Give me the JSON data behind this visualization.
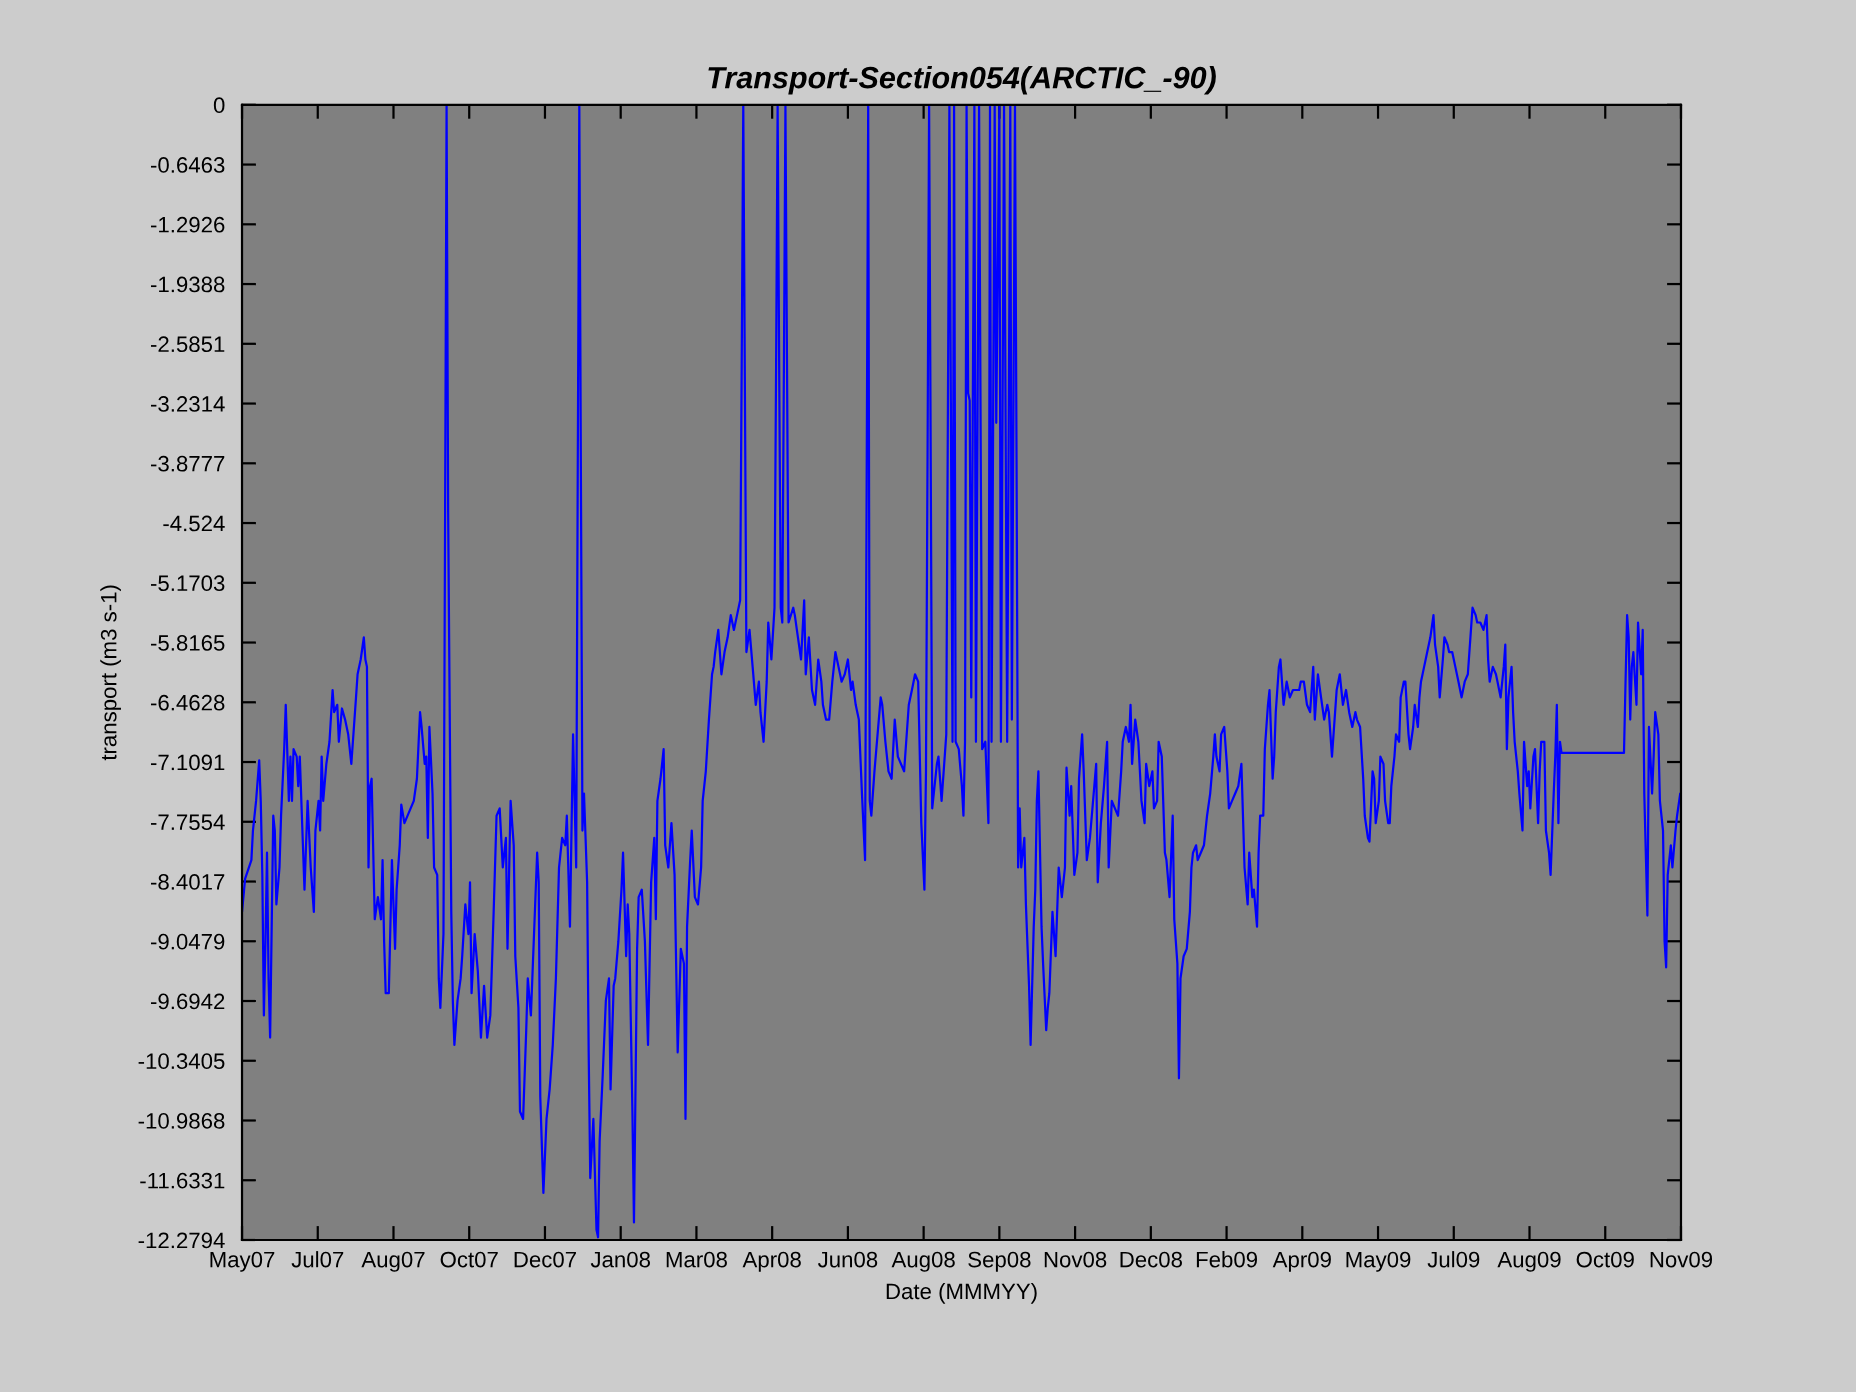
{
  "chart_data": {
    "type": "line",
    "title": "Transport-Section054(ARCTIC_-90)",
    "xlabel": "Date (MMMYY)",
    "ylabel": "transport (m3 s-1)",
    "color": "#0000ff",
    "line_style": "solid",
    "xlim": [
      "2007-05-23",
      "2009-11-29T12:00"
    ],
    "xticks": [
      {
        "value": "2007-05-23",
        "label": "May07"
      },
      {
        "value": "2007-07-10T12:00",
        "label": "Jul07"
      },
      {
        "value": "2007-08-28",
        "label": "Aug07"
      },
      {
        "value": "2007-10-15T12:00",
        "label": "Oct07"
      },
      {
        "value": "2007-12-03",
        "label": "Dec07"
      },
      {
        "value": "2008-01-20T12:00",
        "label": "Jan08"
      },
      {
        "value": "2008-03-09",
        "label": "Mar08"
      },
      {
        "value": "2008-04-26T12:00",
        "label": "Apr08"
      },
      {
        "value": "2008-06-14",
        "label": "Jun08"
      },
      {
        "value": "2008-08-01T12:00",
        "label": "Aug08"
      },
      {
        "value": "2008-09-19",
        "label": "Sep08"
      },
      {
        "value": "2008-11-06T12:00",
        "label": "Nov08"
      },
      {
        "value": "2008-12-25",
        "label": "Dec08"
      },
      {
        "value": "2009-02-11T12:00",
        "label": "Feb09"
      },
      {
        "value": "2009-04-01",
        "label": "Apr09"
      },
      {
        "value": "2009-05-19T12:00",
        "label": "May09"
      },
      {
        "value": "2009-07-07",
        "label": "Jul09"
      },
      {
        "value": "2009-08-24T12:00",
        "label": "Aug09"
      },
      {
        "value": "2009-10-12",
        "label": "Oct09"
      },
      {
        "value": "2009-11-29T12:00",
        "label": "Nov09"
      }
    ],
    "ylim": [
      -12.2794,
      0
    ],
    "yticks": [
      0,
      -0.6463,
      -1.2926,
      -1.9388,
      -2.5851,
      -3.2314,
      -3.8777,
      -4.524,
      -5.1703,
      -5.8165,
      -6.4628,
      -7.1091,
      -7.7554,
      -8.4017,
      -9.0479,
      -9.6942,
      -10.3405,
      -10.9868,
      -11.6331,
      -12.2794
    ],
    "x": [
      "2007-05-23",
      "2007-05-25",
      "2007-05-29",
      "2007-05-30",
      "2007-06-01",
      "2007-06-03",
      "2007-06-04",
      "2007-06-05",
      "2007-06-06",
      "2007-06-07",
      "2007-06-08",
      "2007-06-09",
      "2007-06-10",
      "2007-06-12",
      "2007-06-13",
      "2007-06-14",
      "2007-06-16",
      "2007-06-17",
      "2007-06-19",
      "2007-06-20",
      "2007-06-22",
      "2007-06-23",
      "2007-06-24",
      "2007-06-25",
      "2007-06-27",
      "2007-06-28",
      "2007-06-29",
      "2007-07-01",
      "2007-07-02",
      "2007-07-04",
      "2007-07-06",
      "2007-07-08",
      "2007-07-09",
      "2007-07-11",
      "2007-07-12",
      "2007-07-13",
      "2007-07-14",
      "2007-07-16",
      "2007-07-18",
      "2007-07-20",
      "2007-07-21",
      "2007-07-23",
      "2007-07-24",
      "2007-07-26",
      "2007-07-28",
      "2007-07-30",
      "2007-08-01",
      "2007-08-02",
      "2007-08-04",
      "2007-08-05",
      "2007-08-07",
      "2007-08-09",
      "2007-08-10",
      "2007-08-11",
      "2007-08-12",
      "2007-08-13",
      "2007-08-14",
      "2007-08-16",
      "2007-08-18",
      "2007-08-20",
      "2007-08-21",
      "2007-08-22",
      "2007-08-23",
      "2007-08-25",
      "2007-08-27",
      "2007-08-29",
      "2007-08-30",
      "2007-09-01",
      "2007-09-02",
      "2007-09-04",
      "2007-09-10",
      "2007-09-12",
      "2007-09-14",
      "2007-09-15",
      "2007-09-17",
      "2007-09-18",
      "2007-09-19",
      "2007-09-20",
      "2007-09-22",
      "2007-09-23",
      "2007-09-25",
      "2007-09-26",
      "2007-09-27",
      "2007-09-29",
      "2007-09-30",
      "2007-10-01",
      "2007-10-02",
      "2007-10-04",
      "2007-10-05",
      "2007-10-06",
      "2007-10-08",
      "2007-10-10",
      "2007-10-11",
      "2007-10-13",
      "2007-10-15",
      "2007-10-16",
      "2007-10-17",
      "2007-10-19",
      "2007-10-21",
      "2007-10-23",
      "2007-10-25",
      "2007-10-27",
      "2007-10-29",
      "2007-10-31",
      "2007-11-02",
      "2007-11-04",
      "2007-11-06",
      "2007-11-08",
      "2007-11-09",
      "2007-11-11",
      "2007-11-13",
      "2007-11-14",
      "2007-11-16",
      "2007-11-17",
      "2007-11-19",
      "2007-11-21",
      "2007-11-22",
      "2007-11-24",
      "2007-11-26",
      "2007-11-28",
      "2007-11-29",
      "2007-11-30",
      "2007-12-02",
      "2007-12-04",
      "2007-12-06",
      "2007-12-08",
      "2007-12-10",
      "2007-12-12",
      "2007-12-14",
      "2007-12-16",
      "2007-12-17",
      "2007-12-19",
      "2007-12-20",
      "2007-12-21",
      "2007-12-23",
      "2007-12-24",
      "2007-12-25",
      "2007-12-27",
      "2007-12-28",
      "2007-12-30",
      "2007-12-31",
      "2008-01-01",
      "2008-01-03",
      "2008-01-05",
      "2008-01-06",
      "2008-01-07",
      "2008-01-09",
      "2008-01-11",
      "2008-01-13",
      "2008-01-14",
      "2008-01-16",
      "2008-01-17",
      "2008-01-19",
      "2008-01-21",
      "2008-01-22",
      "2008-01-24",
      "2008-01-25",
      "2008-01-26",
      "2008-01-28",
      "2008-01-29",
      "2008-01-31",
      "2008-02-01",
      "2008-02-03",
      "2008-02-05",
      "2008-02-07",
      "2008-02-09",
      "2008-02-11",
      "2008-02-12",
      "2008-02-13",
      "2008-02-15",
      "2008-02-17",
      "2008-02-18",
      "2008-02-20",
      "2008-02-22",
      "2008-02-24",
      "2008-02-26",
      "2008-02-28",
      "2008-03-01",
      "2008-03-02",
      "2008-03-03",
      "2008-03-05",
      "2008-03-06",
      "2008-03-08",
      "2008-03-10",
      "2008-03-12",
      "2008-03-13",
      "2008-03-15",
      "2008-03-17",
      "2008-03-19",
      "2008-03-20",
      "2008-03-21",
      "2008-03-23",
      "2008-03-25",
      "2008-03-27",
      "2008-03-29",
      "2008-03-31",
      "2008-04-02",
      "2008-04-04",
      "2008-04-06",
      "2008-04-07",
      "2008-04-08",
      "2008-04-09",
      "2008-04-10",
      "2008-04-12",
      "2008-04-14",
      "2008-04-16",
      "2008-04-18",
      "2008-04-19",
      "2008-04-21",
      "2008-04-23",
      "2008-04-24",
      "2008-04-26",
      "2008-04-28",
      "2008-04-29",
      "2008-04-30",
      "2008-05-01",
      "2008-05-02",
      "2008-05-03",
      "2008-05-04",
      "2008-05-05",
      "2008-05-06",
      "2008-05-07",
      "2008-05-10",
      "2008-05-11",
      "2008-05-13",
      "2008-05-15",
      "2008-05-17",
      "2008-05-18",
      "2008-05-20",
      "2008-05-22",
      "2008-05-24",
      "2008-05-26",
      "2008-05-28",
      "2008-05-29",
      "2008-05-31",
      "2008-06-02",
      "2008-06-04",
      "2008-06-06",
      "2008-06-08",
      "2008-06-10",
      "2008-06-12",
      "2008-06-14",
      "2008-06-16",
      "2008-06-17",
      "2008-06-19",
      "2008-06-21",
      "2008-06-23",
      "2008-06-25",
      "2008-06-26",
      "2008-06-27",
      "2008-06-28",
      "2008-06-29",
      "2008-07-01",
      "2008-07-03",
      "2008-07-05",
      "2008-07-06",
      "2008-07-08",
      "2008-07-10",
      "2008-07-12",
      "2008-07-14",
      "2008-07-16",
      "2008-07-18",
      "2008-07-20",
      "2008-07-22",
      "2008-07-23",
      "2008-07-25",
      "2008-07-27",
      "2008-07-29",
      "2008-07-31",
      "2008-08-02",
      "2008-08-03",
      "2008-08-04",
      "2008-08-05",
      "2008-08-06",
      "2008-08-07",
      "2008-08-09",
      "2008-08-10",
      "2008-08-11",
      "2008-08-13",
      "2008-08-15",
      "2008-08-16",
      "2008-08-17",
      "2008-08-18",
      "2008-08-19",
      "2008-08-20",
      "2008-08-21",
      "2008-08-22",
      "2008-08-24",
      "2008-08-26",
      "2008-08-27",
      "2008-08-28",
      "2008-08-29",
      "2008-08-30",
      "2008-08-31",
      "2008-09-01",
      "2008-09-03",
      "2008-09-04",
      "2008-09-06",
      "2008-09-08",
      "2008-09-10",
      "2008-09-12",
      "2008-09-13",
      "2008-09-14",
      "2008-09-16",
      "2008-09-17",
      "2008-09-19",
      "2008-09-20",
      "2008-09-22",
      "2008-09-24",
      "2008-09-26",
      "2008-09-27",
      "2008-09-29",
      "2008-09-30",
      "2008-10-01",
      "2008-10-02",
      "2008-10-03",
      "2008-10-05",
      "2008-10-06",
      "2008-10-08",
      "2008-10-09",
      "2008-10-11",
      "2008-10-12",
      "2008-10-13",
      "2008-10-14",
      "2008-10-16",
      "2008-10-17",
      "2008-10-19",
      "2008-10-20",
      "2008-10-21",
      "2008-10-23",
      "2008-10-25",
      "2008-10-27",
      "2008-10-29",
      "2008-10-31",
      "2008-11-01",
      "2008-11-03",
      "2008-11-04",
      "2008-11-06",
      "2008-11-08",
      "2008-11-09",
      "2008-11-11",
      "2008-11-12",
      "2008-11-14",
      "2008-11-16",
      "2008-11-18",
      "2008-11-20",
      "2008-11-21",
      "2008-11-23",
      "2008-11-25",
      "2008-11-27",
      "2008-11-28",
      "2008-11-30",
      "2008-12-02",
      "2008-12-04",
      "2008-12-06",
      "2008-12-07",
      "2008-12-09",
      "2008-12-11",
      "2008-12-12",
      "2008-12-13",
      "2008-12-15",
      "2008-12-17",
      "2008-12-19",
      "2008-12-21",
      "2008-12-22",
      "2008-12-24",
      "2008-12-26",
      "2008-12-27",
      "2008-12-29",
      "2008-12-30",
      "2009-01-01",
      "2009-01-03",
      "2009-01-04",
      "2009-01-06",
      "2009-01-08",
      "2009-01-09",
      "2009-01-11",
      "2009-01-12",
      "2009-01-13",
      "2009-01-15",
      "2009-01-17",
      "2009-01-19",
      "2009-01-20",
      "2009-01-21",
      "2009-01-23",
      "2009-01-24",
      "2009-01-26",
      "2009-01-28",
      "2009-01-30",
      "2009-02-01",
      "2009-02-03",
      "2009-02-04",
      "2009-02-05",
      "2009-02-07",
      "2009-02-08",
      "2009-02-10",
      "2009-02-12",
      "2009-02-13",
      "2009-02-15",
      "2009-02-17",
      "2009-02-19",
      "2009-02-21",
      "2009-02-22",
      "2009-02-23",
      "2009-02-25",
      "2009-02-26",
      "2009-02-28",
      "2009-03-01",
      "2009-03-03",
      "2009-03-04",
      "2009-03-05",
      "2009-03-07",
      "2009-03-08",
      "2009-03-10",
      "2009-03-11",
      "2009-03-13",
      "2009-03-14",
      "2009-03-15",
      "2009-03-17",
      "2009-03-18",
      "2009-03-20",
      "2009-03-22",
      "2009-03-24",
      "2009-03-26",
      "2009-03-28",
      "2009-03-30",
      "2009-03-31",
      "2009-04-02",
      "2009-04-04",
      "2009-04-06",
      "2009-04-08",
      "2009-04-09",
      "2009-04-11",
      "2009-04-13",
      "2009-04-15",
      "2009-04-17",
      "2009-04-18",
      "2009-04-20",
      "2009-04-22",
      "2009-04-23",
      "2009-04-25",
      "2009-04-27",
      "2009-04-29",
      "2009-05-01",
      "2009-05-03",
      "2009-05-05",
      "2009-05-06",
      "2009-05-08",
      "2009-05-10",
      "2009-05-11",
      "2009-05-13",
      "2009-05-14",
      "2009-05-16",
      "2009-05-17",
      "2009-05-18",
      "2009-05-20",
      "2009-05-21",
      "2009-05-23",
      "2009-05-24",
      "2009-05-26",
      "2009-05-27",
      "2009-05-28",
      "2009-05-30",
      "2009-05-31",
      "2009-06-02",
      "2009-06-03",
      "2009-06-05",
      "2009-06-06",
      "2009-06-08",
      "2009-06-09",
      "2009-06-11",
      "2009-06-12",
      "2009-06-14",
      "2009-06-15",
      "2009-06-16",
      "2009-06-18",
      "2009-06-20",
      "2009-06-22",
      "2009-06-24",
      "2009-06-25",
      "2009-06-27",
      "2009-06-28",
      "2009-06-30",
      "2009-07-01",
      "2009-07-03",
      "2009-07-04",
      "2009-07-06",
      "2009-07-08",
      "2009-07-10",
      "2009-07-12",
      "2009-07-14",
      "2009-07-16",
      "2009-07-18",
      "2009-07-19",
      "2009-07-21",
      "2009-07-22",
      "2009-07-24",
      "2009-07-26",
      "2009-07-28",
      "2009-07-29",
      "2009-07-30",
      "2009-08-01",
      "2009-08-03",
      "2009-08-04",
      "2009-08-06",
      "2009-08-08",
      "2009-08-09",
      "2009-08-10",
      "2009-08-11",
      "2009-08-13",
      "2009-08-14",
      "2009-08-15",
      "2009-08-17",
      "2009-08-18",
      "2009-08-20",
      "2009-08-21",
      "2009-08-23",
      "2009-08-24",
      "2009-08-25",
      "2009-08-27",
      "2009-08-28",
      "2009-08-30",
      "2009-08-31",
      "2009-09-01",
      "2009-09-03",
      "2009-09-04",
      "2009-09-06",
      "2009-09-07",
      "2009-09-09",
      "2009-09-10",
      "2009-09-11",
      "2009-09-12",
      "2009-09-13",
      "2009-09-14",
      "2009-10-24",
      "2009-10-25",
      "2009-10-26",
      "2009-10-27",
      "2009-10-28",
      "2009-10-29",
      "2009-10-30",
      "2009-11-01",
      "2009-11-02",
      "2009-11-04",
      "2009-11-05",
      "2009-11-06",
      "2009-11-08",
      "2009-11-09",
      "2009-11-11",
      "2009-11-12",
      "2009-11-13",
      "2009-11-15",
      "2009-11-16",
      "2009-11-18",
      "2009-11-19",
      "2009-11-20",
      "2009-11-21",
      "2009-11-23",
      "2009-11-24",
      "2009-11-26",
      "2009-11-27",
      "2009-11-29"
    ],
    "values": [
      -8.73,
      -8.37,
      -8.17,
      -7.85,
      -7.53,
      -7.09,
      -7.53,
      -8.33,
      -9.85,
      -9.05,
      -8.09,
      -9.45,
      -10.09,
      -7.69,
      -7.85,
      -8.65,
      -8.25,
      -7.69,
      -6.97,
      -6.49,
      -7.53,
      -7.05,
      -7.53,
      -6.97,
      -7.05,
      -7.37,
      -7.05,
      -8.01,
      -8.49,
      -7.53,
      -8.25,
      -8.73,
      -7.85,
      -7.53,
      -7.85,
      -7.05,
      -7.53,
      -7.13,
      -6.89,
      -6.33,
      -6.57,
      -6.49,
      -6.89,
      -6.53,
      -6.65,
      -6.81,
      -7.13,
      -6.89,
      -6.41,
      -6.16,
      -6.0,
      -5.76,
      -6.0,
      -6.08,
      -8.25,
      -7.37,
      -7.29,
      -8.81,
      -8.57,
      -8.81,
      -8.17,
      -9.05,
      -9.61,
      -9.61,
      -8.17,
      -9.13,
      -8.49,
      -8.01,
      -7.57,
      -7.77,
      -7.53,
      -7.29,
      -6.57,
      -6.73,
      -7.13,
      -7.05,
      -7.93,
      -6.73,
      -7.45,
      -8.25,
      -8.33,
      -9.45,
      -9.77,
      -8.97,
      -4.64,
      0,
      -4.4,
      -8.73,
      -9.69,
      -10.17,
      -9.69,
      -9.45,
      -9.21,
      -8.65,
      -8.97,
      -8.41,
      -9.61,
      -8.97,
      -9.37,
      -10.09,
      -9.53,
      -10.09,
      -9.85,
      -8.81,
      -7.69,
      -7.61,
      -8.25,
      -7.93,
      -9.13,
      -7.53,
      -8.01,
      -9.21,
      -9.77,
      -10.89,
      -10.97,
      -10.01,
      -9.45,
      -9.85,
      -8.97,
      -8.09,
      -8.41,
      -10.73,
      -11.77,
      -10.97,
      -10.65,
      -10.17,
      -9.45,
      -8.25,
      -7.93,
      -8.01,
      -7.69,
      -8.89,
      -7.85,
      -6.81,
      -8.25,
      -3.92,
      0,
      -7.85,
      -7.45,
      -8.41,
      -10.25,
      -11.61,
      -10.97,
      -12.17,
      -12.25,
      -11.21,
      -10.49,
      -9.69,
      -9.45,
      -10.65,
      -9.53,
      -9.45,
      -9.05,
      -8.49,
      -8.09,
      -9.21,
      -8.65,
      -8.97,
      -10.89,
      -12.09,
      -9.13,
      -8.57,
      -8.49,
      -9.05,
      -10.17,
      -8.41,
      -7.93,
      -8.81,
      -7.53,
      -7.29,
      -6.97,
      -8.01,
      -8.25,
      -7.77,
      -8.33,
      -10.25,
      -9.13,
      -9.29,
      -10.97,
      -8.89,
      -8.17,
      -7.85,
      -8.57,
      -8.65,
      -8.25,
      -7.53,
      -7.21,
      -6.65,
      -6.16,
      -6.08,
      -5.92,
      -5.68,
      -6.16,
      -5.92,
      -5.76,
      -5.52,
      -5.68,
      -5.52,
      -5.36,
      -2.8,
      0,
      -2.96,
      -5.92,
      -5.68,
      -6.08,
      -6.49,
      -6.24,
      -6.57,
      -6.89,
      -6.24,
      -5.6,
      -6.0,
      -5.44,
      -2.88,
      0,
      -2.88,
      -5.44,
      -5.6,
      -2.88,
      0,
      -2.8,
      -5.6,
      -5.44,
      -5.52,
      -5.76,
      -6.0,
      -5.36,
      -6.16,
      -5.76,
      -6.33,
      -6.49,
      -6.0,
      -6.24,
      -6.49,
      -6.65,
      -6.65,
      -6.24,
      -5.92,
      -6.08,
      -6.24,
      -6.16,
      -6.0,
      -6.33,
      -6.24,
      -6.49,
      -6.65,
      -7.45,
      -8.17,
      -4.16,
      0,
      -7.53,
      -7.69,
      -7.21,
      -6.81,
      -6.41,
      -6.49,
      -6.89,
      -7.21,
      -7.29,
      -6.65,
      -7.05,
      -7.13,
      -7.21,
      -6.73,
      -6.49,
      -6.33,
      -6.16,
      -6.24,
      -7.77,
      -8.49,
      -7.21,
      -3.84,
      0,
      -3.68,
      -7.61,
      -7.29,
      -7.13,
      -7.05,
      -7.53,
      -7.05,
      -6.81,
      -3.44,
      0,
      -3.44,
      -6.89,
      0,
      -6.89,
      -6.97,
      -7.37,
      -7.69,
      -6.89,
      0,
      -3.12,
      -3.2,
      -6.41,
      0,
      -6.89,
      0,
      -6.97,
      -6.89,
      -7.77,
      0,
      -6.89,
      0,
      -3.44,
      0,
      -6.89,
      0,
      -6.89,
      0,
      -6.65,
      0,
      -3.84,
      -8.25,
      -7.61,
      -8.25,
      -7.93,
      -8.65,
      -9.53,
      -10.17,
      -8.89,
      -8.49,
      -7.53,
      -7.21,
      -8.89,
      -9.29,
      -10.01,
      -9.77,
      -9.61,
      -8.73,
      -9.21,
      -8.25,
      -8.57,
      -8.25,
      -7.17,
      -7.69,
      -7.37,
      -8.33,
      -8.09,
      -7.29,
      -6.81,
      -7.21,
      -8.17,
      -7.93,
      -7.53,
      -7.13,
      -8.41,
      -7.77,
      -7.37,
      -6.89,
      -8.25,
      -7.53,
      -7.61,
      -7.69,
      -7.21,
      -6.89,
      -6.73,
      -6.89,
      -6.49,
      -7.13,
      -6.65,
      -6.89,
      -7.53,
      -7.77,
      -7.13,
      -7.37,
      -7.21,
      -7.61,
      -7.53,
      -6.89,
      -7.05,
      -8.09,
      -8.17,
      -8.57,
      -7.69,
      -8.81,
      -9.29,
      -10.53,
      -9.45,
      -9.21,
      -9.13,
      -8.73,
      -8.25,
      -8.09,
      -8.01,
      -8.17,
      -8.09,
      -8.01,
      -7.69,
      -7.45,
      -7.05,
      -6.81,
      -7.05,
      -7.21,
      -6.81,
      -6.73,
      -7.21,
      -7.61,
      -7.53,
      -7.45,
      -7.37,
      -7.13,
      -7.69,
      -8.25,
      -8.65,
      -8.09,
      -8.57,
      -8.49,
      -8.89,
      -8.09,
      -7.69,
      -7.69,
      -6.97,
      -6.49,
      -6.33,
      -7.29,
      -7.05,
      -6.57,
      -6.08,
      -6.0,
      -6.49,
      -6.24,
      -6.41,
      -6.33,
      -6.33,
      -6.33,
      -6.24,
      -6.24,
      -6.49,
      -6.57,
      -6.08,
      -6.65,
      -6.16,
      -6.41,
      -6.65,
      -6.49,
      -6.57,
      -7.05,
      -6.57,
      -6.33,
      -6.16,
      -6.49,
      -6.33,
      -6.57,
      -6.73,
      -6.57,
      -6.65,
      -6.73,
      -7.29,
      -7.69,
      -7.93,
      -7.97,
      -7.21,
      -7.29,
      -7.77,
      -7.53,
      -7.05,
      -7.13,
      -7.53,
      -7.77,
      -7.77,
      -7.37,
      -7.05,
      -6.81,
      -6.89,
      -6.41,
      -6.24,
      -6.24,
      -6.81,
      -6.97,
      -6.73,
      -6.49,
      -6.73,
      -6.41,
      -6.24,
      -6.08,
      -5.92,
      -5.76,
      -5.52,
      -5.84,
      -6.08,
      -6.41,
      -6.0,
      -5.76,
      -5.84,
      -5.92,
      -5.92,
      -6.08,
      -6.24,
      -6.41,
      -6.24,
      -6.16,
      -5.68,
      -5.44,
      -5.52,
      -5.6,
      -5.6,
      -5.68,
      -5.52,
      -6.0,
      -6.24,
      -6.08,
      -6.16,
      -6.24,
      -6.41,
      -6.08,
      -5.84,
      -6.97,
      -6.41,
      -6.08,
      -6.57,
      -6.89,
      -7.21,
      -7.45,
      -7.85,
      -6.89,
      -7.37,
      -7.21,
      -7.61,
      -7.05,
      -6.97,
      -7.77,
      -7.21,
      -6.89,
      -6.89,
      -7.85,
      -8.09,
      -8.33,
      -7.45,
      -7.05,
      -6.49,
      -7.77,
      -6.89,
      -7.01,
      -7.01,
      -6.24,
      -5.52,
      -5.76,
      -6.65,
      -6.08,
      -5.92,
      -6.49,
      -5.6,
      -6.16,
      -5.68,
      -7.45,
      -8.77,
      -6.73,
      -7.45,
      -7.05,
      -6.57,
      -6.81,
      -7.53,
      -7.85,
      -9.05,
      -9.33,
      -8.33,
      -8.01,
      -8.25,
      -7.85,
      -7.69,
      -7.45
    ]
  }
}
